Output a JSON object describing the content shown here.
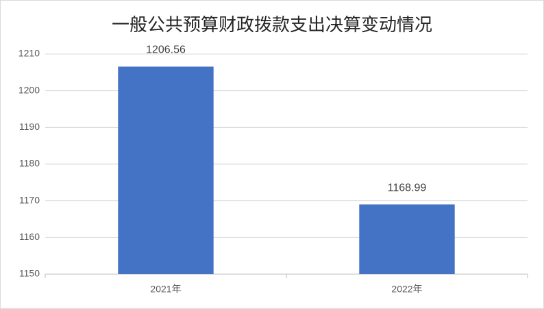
{
  "chart_data": {
    "type": "bar",
    "title": "一般公共预算财政拨款支出决算变动情况",
    "categories": [
      "2021年",
      "2022年"
    ],
    "values": [
      1206.56,
      1168.99
    ],
    "color": "#4472c4",
    "ylim": [
      1150,
      1210
    ],
    "yticks": [
      1150,
      1160,
      1170,
      1180,
      1190,
      1200,
      1210
    ],
    "grid": true
  }
}
